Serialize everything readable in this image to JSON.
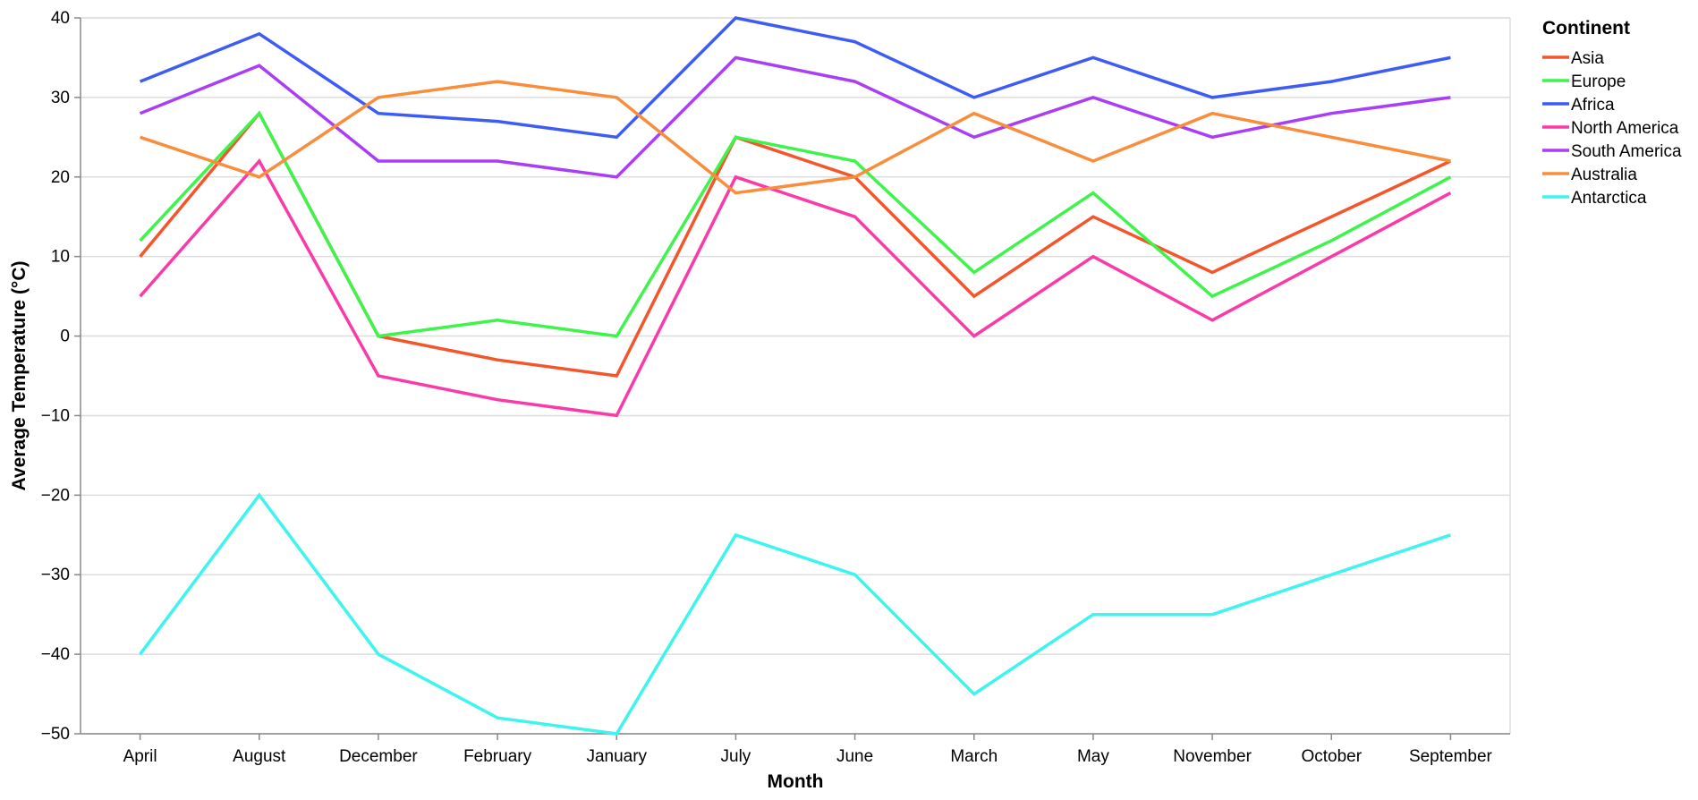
{
  "chart_data": {
    "type": "line",
    "title": "",
    "xlabel": "Month",
    "ylabel": "Average Temperature (°C)",
    "categories": [
      "April",
      "August",
      "December",
      "February",
      "January",
      "July",
      "June",
      "March",
      "May",
      "November",
      "October",
      "September"
    ],
    "ylim": [
      -50,
      40
    ],
    "yticks": [
      40,
      30,
      20,
      10,
      0,
      -10,
      -20,
      -30,
      -40,
      -50
    ],
    "ytick_labels": [
      "40",
      "30",
      "20",
      "10",
      "0",
      "−10",
      "−20",
      "−30",
      "−40",
      "−50"
    ],
    "grid": true,
    "legend": {
      "title": "Continent",
      "position": "top-right"
    },
    "series": [
      {
        "name": "Asia",
        "color": "#f4562c",
        "values": [
          10,
          28,
          0,
          -3,
          -5,
          25,
          20,
          5,
          15,
          8,
          15,
          22
        ]
      },
      {
        "name": "Europe",
        "color": "#3ef44b",
        "values": [
          12,
          28,
          0,
          2,
          0,
          25,
          22,
          8,
          18,
          5,
          12,
          20
        ]
      },
      {
        "name": "Africa",
        "color": "#3d5cf5",
        "values": [
          32,
          38,
          28,
          27,
          25,
          40,
          37,
          30,
          35,
          30,
          32,
          35
        ]
      },
      {
        "name": "North America",
        "color": "#f93aa8",
        "values": [
          5,
          22,
          -5,
          -8,
          -10,
          20,
          15,
          0,
          10,
          2,
          10,
          18
        ]
      },
      {
        "name": "South America",
        "color": "#a93ef4",
        "values": [
          28,
          34,
          22,
          22,
          20,
          35,
          32,
          25,
          30,
          25,
          28,
          30
        ]
      },
      {
        "name": "Australia",
        "color": "#f98d3c",
        "values": [
          25,
          20,
          30,
          32,
          30,
          18,
          20,
          28,
          22,
          28,
          25,
          22
        ]
      },
      {
        "name": "Antarctica",
        "color": "#3ef4ef",
        "values": [
          -40,
          -20,
          -40,
          -48,
          -50,
          -25,
          -30,
          -45,
          -35,
          -35,
          -30,
          -25
        ]
      }
    ]
  }
}
